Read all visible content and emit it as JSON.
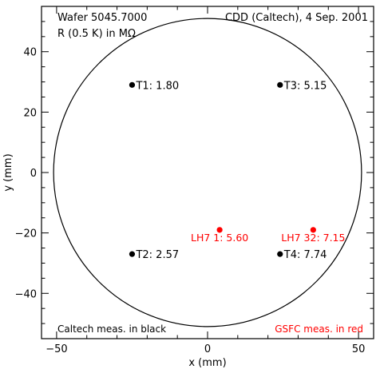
{
  "chart_data": {
    "type": "scatter",
    "annotations": {
      "top_left_1": "Wafer 5045.7000",
      "top_left_2": "R (0.5 K) in MΩ",
      "top_right": "CDD (Caltech), 4 Sep. 2001",
      "bottom_left": "Caltech meas. in black",
      "bottom_right": "GSFC meas. in red"
    },
    "xlabel": "x (mm)",
    "ylabel": "y (mm)",
    "xlim": [
      -55,
      55
    ],
    "ylim": [
      -55,
      55
    ],
    "x_ticks": [
      -50,
      0,
      50
    ],
    "y_ticks": [
      -40,
      -20,
      0,
      20,
      40
    ],
    "wafer_circle": {
      "center": [
        0,
        0
      ],
      "radius": 51
    },
    "series": [
      {
        "color": "#000000",
        "label_position": "right",
        "points": [
          {
            "x": -25,
            "y": 29,
            "label": "T1: 1.80"
          },
          {
            "x": 24,
            "y": 29,
            "label": "T3: 5.15"
          },
          {
            "x": -25,
            "y": -27,
            "label": "T2: 2.57"
          },
          {
            "x": 24,
            "y": -27,
            "label": "T4: 7.74"
          }
        ]
      },
      {
        "color": "#ff0000",
        "label_position": "below",
        "points": [
          {
            "x": 4,
            "y": -19,
            "label": "LH7 1: 5.60"
          },
          {
            "x": 35,
            "y": -19,
            "label": "LH7 32: 7.15"
          }
        ]
      }
    ],
    "grid": false,
    "legend": "none"
  }
}
